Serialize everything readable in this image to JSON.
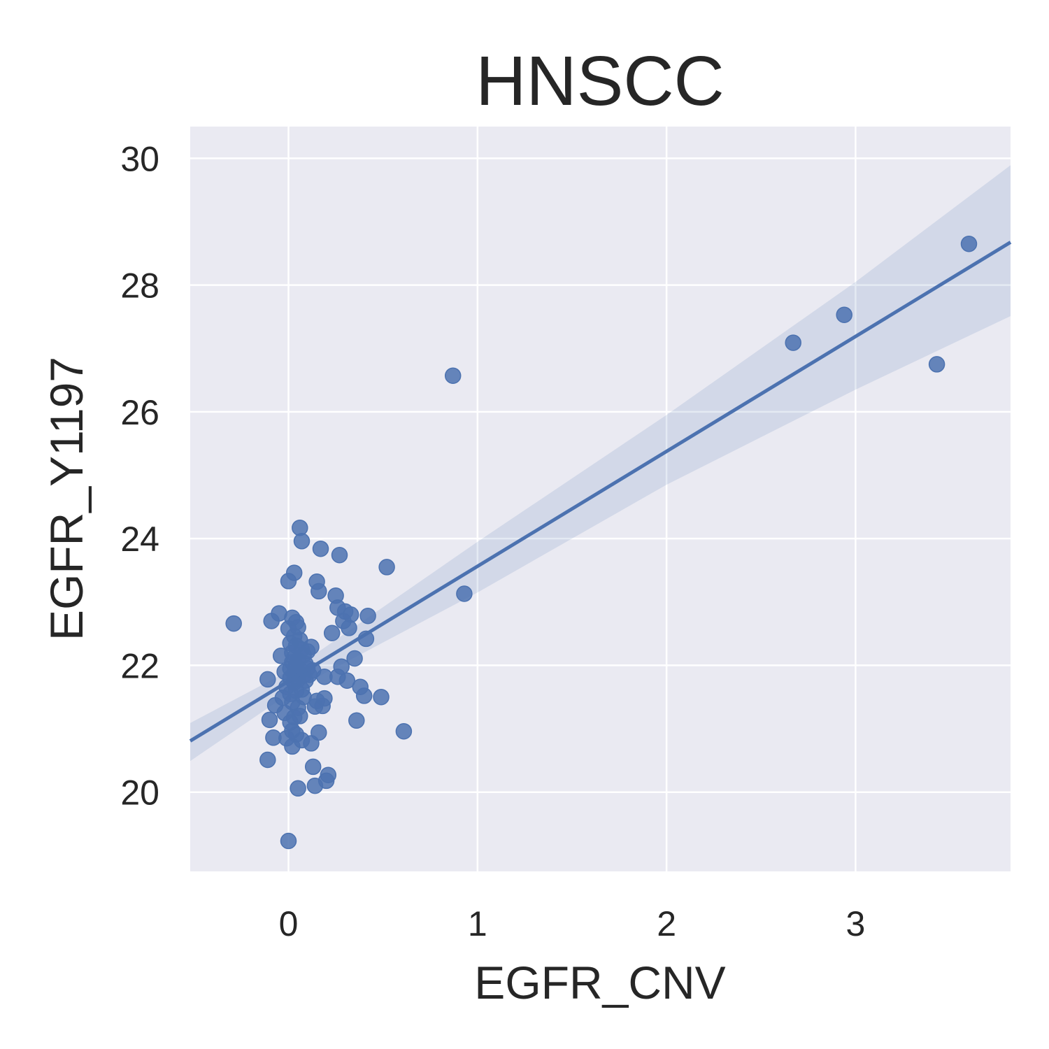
{
  "chart_data": {
    "type": "scatter",
    "title": "HNSCC",
    "xlabel": "EGFR_CNV",
    "ylabel": "EGFR_Y1197",
    "xlim": [
      -0.52,
      3.82
    ],
    "ylim": [
      18.75,
      30.5
    ],
    "x_ticks": [
      0,
      1,
      2,
      3
    ],
    "y_ticks": [
      20,
      22,
      24,
      26,
      28,
      30
    ],
    "grid": true,
    "legend": "none",
    "colors": {
      "background": "#eaeaf2",
      "grid": "#ffffff",
      "point": "#4c72b0",
      "line": "#4c72b0",
      "band": "#4c72b0"
    },
    "regression": {
      "slope": 1.813,
      "intercept": 21.75,
      "ci": [
        {
          "x": -0.52,
          "low": 20.49,
          "high": 21.09
        },
        {
          "x": 0.05,
          "low": 21.65,
          "high": 21.99
        },
        {
          "x": 1.0,
          "low": 23.15,
          "high": 23.95
        },
        {
          "x": 2.0,
          "low": 24.85,
          "high": 25.95
        },
        {
          "x": 3.0,
          "low": 26.35,
          "high": 28.05
        },
        {
          "x": 3.82,
          "low": 27.51,
          "high": 29.89
        }
      ]
    },
    "points": [
      {
        "x": -0.29,
        "y": 22.66
      },
      {
        "x": -0.11,
        "y": 21.78
      },
      {
        "x": -0.1,
        "y": 21.14
      },
      {
        "x": -0.09,
        "y": 22.7
      },
      {
        "x": -0.08,
        "y": 20.86
      },
      {
        "x": -0.07,
        "y": 21.37
      },
      {
        "x": -0.11,
        "y": 20.51
      },
      {
        "x": -0.05,
        "y": 22.82
      },
      {
        "x": -0.04,
        "y": 22.15
      },
      {
        "x": -0.03,
        "y": 21.49
      },
      {
        "x": -0.02,
        "y": 21.9
      },
      {
        "x": -0.02,
        "y": 21.25
      },
      {
        "x": -0.01,
        "y": 20.85
      },
      {
        "x": -0.01,
        "y": 21.66
      },
      {
        "x": 0.0,
        "y": 22.58
      },
      {
        "x": 0.0,
        "y": 23.33
      },
      {
        "x": 0.0,
        "y": 19.23
      },
      {
        "x": 0.01,
        "y": 21.95
      },
      {
        "x": 0.01,
        "y": 22.35
      },
      {
        "x": 0.01,
        "y": 21.1
      },
      {
        "x": 0.01,
        "y": 21.8
      },
      {
        "x": 0.01,
        "y": 21.55
      },
      {
        "x": 0.02,
        "y": 22.75
      },
      {
        "x": 0.02,
        "y": 20.72
      },
      {
        "x": 0.02,
        "y": 22.05
      },
      {
        "x": 0.02,
        "y": 21.42
      },
      {
        "x": 0.02,
        "y": 22.2
      },
      {
        "x": 0.02,
        "y": 20.97
      },
      {
        "x": 0.03,
        "y": 21.73
      },
      {
        "x": 0.03,
        "y": 22.46
      },
      {
        "x": 0.03,
        "y": 21.18
      },
      {
        "x": 0.03,
        "y": 21.87
      },
      {
        "x": 0.03,
        "y": 22.12
      },
      {
        "x": 0.03,
        "y": 23.46
      },
      {
        "x": 0.04,
        "y": 22.68
      },
      {
        "x": 0.04,
        "y": 21.6
      },
      {
        "x": 0.04,
        "y": 21.99
      },
      {
        "x": 0.04,
        "y": 20.91
      },
      {
        "x": 0.04,
        "y": 22.31
      },
      {
        "x": 0.05,
        "y": 21.33
      },
      {
        "x": 0.05,
        "y": 22.6
      },
      {
        "x": 0.05,
        "y": 21.78
      },
      {
        "x": 0.05,
        "y": 20.06
      },
      {
        "x": 0.05,
        "y": 22.08
      },
      {
        "x": 0.06,
        "y": 21.2
      },
      {
        "x": 0.06,
        "y": 24.17
      },
      {
        "x": 0.06,
        "y": 21.93
      },
      {
        "x": 0.06,
        "y": 22.4
      },
      {
        "x": 0.07,
        "y": 21.62
      },
      {
        "x": 0.07,
        "y": 20.82
      },
      {
        "x": 0.07,
        "y": 22.25
      },
      {
        "x": 0.07,
        "y": 23.96
      },
      {
        "x": 0.08,
        "y": 21.84
      },
      {
        "x": 0.08,
        "y": 22.16
      },
      {
        "x": 0.08,
        "y": 21.5
      },
      {
        "x": 0.09,
        "y": 22.02
      },
      {
        "x": 0.09,
        "y": 21.76
      },
      {
        "x": 0.1,
        "y": 22.22
      },
      {
        "x": 0.1,
        "y": 21.95
      },
      {
        "x": 0.11,
        "y": 21.85
      },
      {
        "x": 0.12,
        "y": 22.29
      },
      {
        "x": 0.12,
        "y": 20.77
      },
      {
        "x": 0.13,
        "y": 21.92
      },
      {
        "x": 0.13,
        "y": 20.4
      },
      {
        "x": 0.14,
        "y": 21.35
      },
      {
        "x": 0.14,
        "y": 20.1
      },
      {
        "x": 0.15,
        "y": 23.32
      },
      {
        "x": 0.15,
        "y": 21.44
      },
      {
        "x": 0.16,
        "y": 23.17
      },
      {
        "x": 0.16,
        "y": 20.94
      },
      {
        "x": 0.17,
        "y": 23.84
      },
      {
        "x": 0.18,
        "y": 21.36
      },
      {
        "x": 0.19,
        "y": 21.82
      },
      {
        "x": 0.19,
        "y": 21.48
      },
      {
        "x": 0.2,
        "y": 20.18
      },
      {
        "x": 0.21,
        "y": 20.27
      },
      {
        "x": 0.23,
        "y": 22.51
      },
      {
        "x": 0.25,
        "y": 23.1
      },
      {
        "x": 0.26,
        "y": 22.91
      },
      {
        "x": 0.26,
        "y": 21.82
      },
      {
        "x": 0.27,
        "y": 23.74
      },
      {
        "x": 0.28,
        "y": 21.98
      },
      {
        "x": 0.29,
        "y": 22.7
      },
      {
        "x": 0.3,
        "y": 22.85
      },
      {
        "x": 0.31,
        "y": 21.76
      },
      {
        "x": 0.32,
        "y": 22.59
      },
      {
        "x": 0.33,
        "y": 22.8
      },
      {
        "x": 0.35,
        "y": 22.11
      },
      {
        "x": 0.36,
        "y": 21.13
      },
      {
        "x": 0.38,
        "y": 21.66
      },
      {
        "x": 0.4,
        "y": 21.52
      },
      {
        "x": 0.41,
        "y": 22.42
      },
      {
        "x": 0.42,
        "y": 22.78
      },
      {
        "x": 0.49,
        "y": 21.5
      },
      {
        "x": 0.52,
        "y": 23.55
      },
      {
        "x": 0.61,
        "y": 20.96
      },
      {
        "x": 0.87,
        "y": 26.57
      },
      {
        "x": 0.93,
        "y": 23.13
      },
      {
        "x": 2.67,
        "y": 27.09
      },
      {
        "x": 2.94,
        "y": 27.53
      },
      {
        "x": 3.43,
        "y": 26.75
      },
      {
        "x": 3.6,
        "y": 28.65
      }
    ]
  }
}
